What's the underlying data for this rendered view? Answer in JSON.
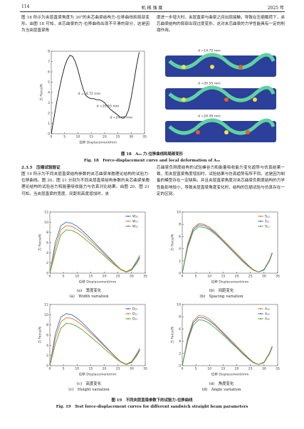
{
  "header": {
    "page": "114",
    "journal": "机 械 强 度",
    "year": "2025 年"
  },
  "intro": [
    "图 18 所示为夹层直梁角度为 30°的夹芯曲梁结构力-位移曲线和局部变形。由图 18 可知，夹芯曲梁的力-位移曲线出现不平滑的部分，这是因为当夹层直梁角",
    "度进一步增大时，夹层直梁与曲梁之间出现接触，导致在压缩载荷下，夹芯曲梁结构的局部出现过度变形，这对夹芯曲梁的力学性能具有一定的削弱作用。"
  ],
  "figure18": {
    "labels": [
      "d =14.72 mm",
      "d =20.55 mm",
      "d =24.49 mm"
    ],
    "caption_cn": "图 18　A₃₀ 力-位移曲线和局部变形",
    "caption_en": "Fig. 18　Force-displacement curve and local deformation of A₃₀"
  },
  "section_heading": "2.3.5　压缩试验验证",
  "body": [
    "图 19 所示为不同夹层直梁结构参数的夹芯曲梁单胞理论结构的试验力-位移曲线。图 20、图 21 分别为不同夹层直梁结构参数的夹芯曲梁单胞理论结构的试验谷力和能量吸收能力与仿真对比结果。由图 20、图 21 可知，当夹层直梁的宽度、间距和高度增加时，夹",
    "芯曲梁负刚度结构的试验峰谷力和能量吸收能力变化趋势与仿真结果一致，而夹层直梁角度增加时，试验结果与仿真趋势有所不同。这是因为制备的模型存在一定缺陷，并且夹层直梁角度对夹芯曲梁负刚度结构的力学性能影响较小，导致夹层直梁角度变化时，结构的压缩试验与仿真存在一定的区别。"
  ],
  "figure19": {
    "caption_cn": "图 19　不同夹层直梁参数下的试验力-位移曲线",
    "caption_en": "Fig. 19　Test force-displacement curves for different sandwich straight beam parameters"
  },
  "chart_data": [
    {
      "type": "line",
      "x_label": "位移 Displacement/mm",
      "y_label": "力 Force/N",
      "x": [
        0,
        1,
        2,
        3,
        4,
        5,
        6,
        7,
        8,
        9,
        10,
        11,
        12,
        13,
        14,
        15,
        16,
        17,
        18,
        19,
        20,
        21,
        22,
        23,
        24,
        25,
        26,
        27,
        28,
        29,
        30,
        31,
        32,
        33
      ],
      "series": [
        {
          "color": "#111111",
          "values": [
            0,
            1.5,
            3,
            4.3,
            5.5,
            6.5,
            7.2,
            7.6,
            7.5,
            7,
            6.2,
            5.2,
            4.3,
            3.7,
            3.5,
            3.4,
            3.4,
            3.3,
            3.3,
            3.2,
            3,
            2.7,
            2.4,
            2.2,
            2,
            1.8,
            1.6,
            1.5,
            1.7,
            2.3,
            3.5,
            5,
            6.6,
            7.9
          ]
        }
      ],
      "xlim": [
        0,
        35
      ],
      "ylim": [
        0,
        8
      ],
      "xticks": [
        0,
        5,
        10,
        15,
        20,
        25,
        30,
        35
      ],
      "yticks": [
        0,
        1,
        2,
        3,
        4,
        5,
        6,
        7,
        8
      ]
    },
    {
      "type": "line",
      "x_label": "位移 Displacement/mm",
      "y_label": "力 Force/N",
      "caption_cn": "(a)　宽度变化",
      "caption_en": "(a)　Width variation",
      "x": [
        0,
        2,
        4,
        6,
        8,
        10,
        12,
        14,
        16,
        18,
        20,
        22,
        24,
        26,
        28,
        30,
        32,
        33
      ],
      "series": [
        {
          "name": "W₁₀",
          "color": "#3a6fc4",
          "values": [
            0,
            6,
            9.3,
            10,
            9.8,
            9.2,
            8.3,
            7.3,
            6.2,
            5.1,
            4,
            2.9,
            1.8,
            0.8,
            0.3,
            0.8,
            2.5,
            3.5
          ]
        },
        {
          "name": "W₁₁",
          "color": "#e8742a",
          "values": [
            0,
            5,
            8.5,
            9.3,
            9.2,
            8.6,
            7.8,
            6.8,
            5.8,
            4.8,
            3.7,
            2.7,
            1.7,
            0.8,
            0.3,
            0.7,
            2.2,
            3.2
          ]
        },
        {
          "name": "W₁₂",
          "color": "#58a23a",
          "values": [
            0,
            4,
            7.5,
            8.5,
            8.4,
            7.9,
            7.1,
            6.2,
            5.3,
            4.3,
            3.4,
            2.4,
            1.5,
            0.7,
            0.2,
            0.6,
            2,
            3
          ]
        }
      ],
      "xlim": [
        0,
        35
      ],
      "ylim": [
        0,
        12
      ],
      "xticks": [
        0,
        5,
        10,
        15,
        20,
        25,
        30,
        35
      ],
      "yticks": [
        0,
        2,
        4,
        6,
        8,
        10,
        12
      ]
    },
    {
      "type": "line",
      "x_label": "位移 Displacement/mm",
      "y_label": "力 Force/N",
      "caption_cn": "(b)　间距变化",
      "caption_en": "(b)　Spacing variation",
      "x": [
        0,
        2,
        4,
        6,
        8,
        10,
        12,
        14,
        16,
        18,
        20,
        22,
        24,
        26,
        28,
        30,
        32,
        33
      ],
      "series": [
        {
          "name": "S₁₀",
          "color": "#e8742a",
          "values": [
            0,
            4.8,
            7.4,
            8.1,
            8,
            7.5,
            6.8,
            5.9,
            5,
            4.1,
            3.2,
            2.3,
            1.4,
            0.6,
            0.2,
            0.6,
            2.2,
            3.4
          ]
        },
        {
          "name": "S₁₁",
          "color": "#3a6fc4",
          "values": [
            0,
            4.5,
            7.1,
            7.9,
            7.8,
            7.3,
            6.6,
            5.7,
            4.8,
            3.9,
            3,
            2.1,
            1.3,
            0.5,
            0.2,
            0.6,
            2.1,
            3.3
          ]
        },
        {
          "name": "S₁₂",
          "color": "#58a23a",
          "values": [
            0,
            4.2,
            6.8,
            7.6,
            7.5,
            7.1,
            6.4,
            5.6,
            4.7,
            3.8,
            2.9,
            2,
            1.2,
            0.5,
            0.2,
            0.5,
            2,
            3.2
          ]
        }
      ],
      "xlim": [
        0,
        35
      ],
      "ylim": [
        0,
        10
      ],
      "xticks": [
        0,
        5,
        10,
        15,
        20,
        25,
        30,
        35
      ],
      "yticks": [
        0,
        2,
        4,
        6,
        8,
        10
      ]
    },
    {
      "type": "line",
      "x_label": "位移 Displacement/mm",
      "y_label": "力 Force/N",
      "caption_cn": "(c)　高度变化",
      "caption_en": "(c)　Height variation",
      "x": [
        0,
        2,
        4,
        6,
        8,
        10,
        12,
        14,
        16,
        18,
        20,
        22,
        24,
        26,
        28,
        30,
        32,
        33
      ],
      "series": [
        {
          "name": "D₁₀",
          "color": "#3a6fc4",
          "values": [
            0,
            6.2,
            9.5,
            10.2,
            10,
            9.3,
            8.4,
            7.3,
            6.2,
            5.1,
            4,
            2.9,
            1.8,
            0.8,
            0.3,
            0.8,
            2.4,
            3.4
          ]
        },
        {
          "name": "D₁₁",
          "color": "#e8742a",
          "values": [
            0,
            5.3,
            8.6,
            9.4,
            9.3,
            8.7,
            7.9,
            6.9,
            5.9,
            4.9,
            3.8,
            2.8,
            1.7,
            0.8,
            0.3,
            0.7,
            2.2,
            3.2
          ]
        },
        {
          "name": "D₁₂",
          "color": "#58a23a",
          "values": [
            0,
            4.2,
            7.3,
            8.3,
            8.2,
            7.7,
            7,
            6.1,
            5.2,
            4.3,
            3.3,
            2.4,
            1.5,
            0.7,
            0.2,
            0.6,
            2,
            3
          ]
        }
      ],
      "xlim": [
        0,
        35
      ],
      "ylim": [
        0,
        12
      ],
      "xticks": [
        0,
        5,
        10,
        15,
        20,
        25,
        30,
        35
      ],
      "yticks": [
        0,
        2,
        4,
        6,
        8,
        10,
        12
      ]
    },
    {
      "type": "line",
      "x_label": "位移 Displacement/mm",
      "y_label": "力 Force/N",
      "caption_cn": "(d)　角度变化",
      "caption_en": "(d)　Angle variation",
      "x": [
        0,
        2,
        4,
        6,
        8,
        10,
        12,
        14,
        16,
        18,
        20,
        22,
        24,
        26,
        28,
        30,
        32,
        33
      ],
      "series": [
        {
          "name": "A₁₀",
          "color": "#e8742a",
          "values": [
            0,
            4.6,
            7.3,
            8.2,
            8.1,
            7.6,
            6.8,
            5.9,
            5,
            4.1,
            3.2,
            2.3,
            1.4,
            0.6,
            0.2,
            0.6,
            2.1,
            3.2
          ]
        },
        {
          "name": "A₂₀",
          "color": "#3a6fc4",
          "values": [
            0,
            4.3,
            7,
            7.9,
            7.8,
            7.3,
            6.6,
            5.7,
            4.8,
            3.9,
            3,
            2.1,
            1.3,
            0.5,
            0.2,
            0.5,
            2,
            3.1
          ]
        },
        {
          "name": "A₃₀",
          "color": "#58a23a",
          "values": [
            0,
            4,
            6.6,
            7.5,
            7.4,
            6.9,
            6.2,
            5.4,
            4.6,
            3.7,
            2.9,
            2,
            1.2,
            0.5,
            0.2,
            0.5,
            1.9,
            3
          ]
        }
      ],
      "xlim": [
        0,
        35
      ],
      "ylim": [
        0,
        10
      ],
      "xticks": [
        0,
        5,
        10,
        15,
        20,
        25,
        30,
        35
      ],
      "yticks": [
        0,
        2,
        4,
        6,
        8,
        10
      ]
    }
  ]
}
